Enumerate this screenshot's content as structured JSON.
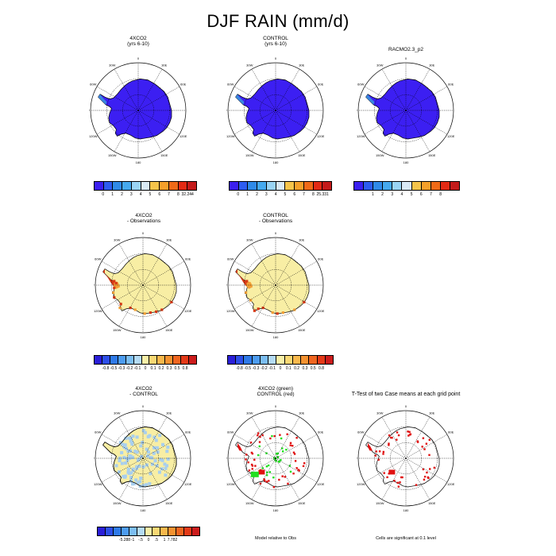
{
  "title": "DJF RAIN (mm/d)",
  "panels": [
    {
      "line1": "4XCO2",
      "line2": "(yrs 6-10)"
    },
    {
      "line1": "CONTROL",
      "line2": "(yrs 6-10)"
    },
    {
      "line1": "RACMO2.3_p2",
      "line2": ""
    },
    {
      "line1": "4XCO2",
      "line2": "- Observations"
    },
    {
      "line1": "CONTROL",
      "line2": "- Observations"
    },
    {
      "line1": "4XCO2",
      "line2": "- CONTROL"
    },
    {
      "line1": "4XCO2 (green)",
      "line2": "CONTROL (red)"
    },
    {
      "line1": "T-Test of two Case means at each grid point",
      "line2": ""
    }
  ],
  "lon_labels": [
    "0",
    "30E",
    "60E",
    "90E",
    "120E",
    "150E",
    "180",
    "150W",
    "120W",
    "90W",
    "60W",
    "30W"
  ],
  "colorbars": {
    "abs1": {
      "colors": [
        "#3b1ff0",
        "#2d5cf0",
        "#2f8ae8",
        "#45a9ee",
        "#9ad4f4",
        "#d9eaf6",
        "#f5c44a",
        "#f5a02a",
        "#f06a17",
        "#e32a14",
        "#c41a1a"
      ],
      "labels": [
        "0",
        "1",
        "2",
        "3",
        "4",
        "5",
        "6",
        "7",
        "8",
        "32.244"
      ]
    },
    "abs2": {
      "colors": [
        "#3b1ff0",
        "#2d5cf0",
        "#2f8ae8",
        "#45a9ee",
        "#9ad4f4",
        "#d9eaf6",
        "#f5c44a",
        "#f5a02a",
        "#f06a17",
        "#e32a14",
        "#c41a1a"
      ],
      "labels": [
        "0",
        "1",
        "2",
        "3",
        "4",
        "5",
        "6",
        "7",
        "8",
        "25.331"
      ]
    },
    "abs3": {
      "colors": [
        "#3b1ff0",
        "#2d5cf0",
        "#2f8ae8",
        "#45a9ee",
        "#9ad4f4",
        "#d9eaf6",
        "#f5c44a",
        "#f5a02a",
        "#f06a17",
        "#e32a14",
        "#c41a1a"
      ],
      "labels": [
        "1",
        "2",
        "3",
        "4",
        "5",
        "6",
        "7",
        "8"
      ]
    },
    "diff1": {
      "colors": [
        "#2b1fd8",
        "#2d4fe8",
        "#2f7ae8",
        "#4d9cf0",
        "#7cbef2",
        "#b4dbf4",
        "#f8f0a8",
        "#f9d874",
        "#f8b84c",
        "#f49230",
        "#ef6620",
        "#e43a18",
        "#cc1c1c"
      ],
      "labels": [
        "-0.8",
        "-0.5",
        "-0.3",
        "-0.2",
        "-0.1",
        "0",
        "0.1",
        "0.2",
        "0.3",
        "0.5",
        "0.8"
      ]
    },
    "diff2": {
      "colors": [
        "#2b1fd8",
        "#2d4fe8",
        "#2f7ae8",
        "#4d9cf0",
        "#7cbef2",
        "#b4dbf4",
        "#f8f0a8",
        "#f9d874",
        "#f8b84c",
        "#f49230",
        "#ef6620",
        "#e43a18",
        "#cc1c1c"
      ],
      "labels": [
        "-0.8",
        "-0.5",
        "-0.3",
        "-0.2",
        "-0.1",
        "0",
        "0.1",
        "0.2",
        "0.3",
        "0.5",
        "0.8"
      ]
    },
    "diff3": {
      "colors": [
        "#2b1fd8",
        "#2d4fe8",
        "#2f7ae8",
        "#4d9cf0",
        "#7cbef2",
        "#b4dbf4",
        "#f8f0a8",
        "#f9d874",
        "#f8b84c",
        "#f49230",
        "#ef6620",
        "#e43a18",
        "#cc1c1c"
      ],
      "labels": [
        "-5.288",
        "-1",
        "-.5",
        "0",
        ".5",
        "1",
        "7.782"
      ]
    }
  },
  "footnotes": {
    "model_relative": "Model relative to Obs",
    "significance": "Cells are significant at 0.1 level"
  },
  "map_colors": {
    "precip_fill": "#3c1ff2",
    "peninsula_light": "#3a86e0",
    "diff_fill": "#f8eea4",
    "diff_edge_orange": "#f2a036",
    "diff_edge_red": "#d83a16",
    "diff_blue": "#a8cfee",
    "sig_red": "#e01010",
    "sig_green": "#20e020"
  }
}
